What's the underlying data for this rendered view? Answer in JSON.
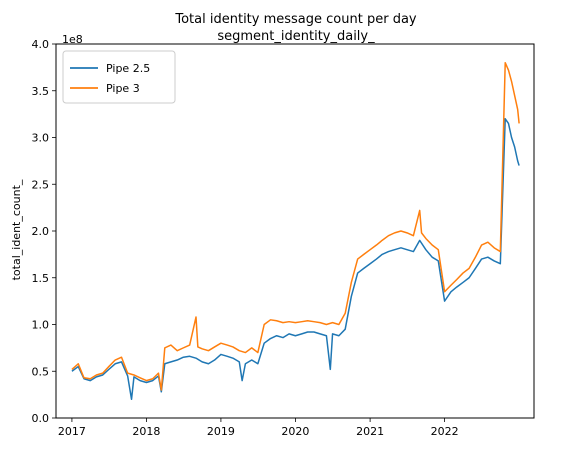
{
  "chart_data": {
    "type": "line",
    "title": "Total identity message count per day",
    "subtitle": "segment_identity_daily_",
    "xlabel": "",
    "ylabel": "total_ident_count_",
    "y_offset_label": "1e8",
    "y_scale_multiplier": 100000000,
    "xlim": [
      "2016-10-15",
      "2023-03-15"
    ],
    "ylim": [
      0,
      400000000
    ],
    "x_ticks": [
      {
        "date": "2017-01-01",
        "label": "2017"
      },
      {
        "date": "2018-01-01",
        "label": "2018"
      },
      {
        "date": "2019-01-01",
        "label": "2019"
      },
      {
        "date": "2020-01-01",
        "label": "2020"
      },
      {
        "date": "2021-01-01",
        "label": "2021"
      },
      {
        "date": "2022-01-01",
        "label": "2022"
      }
    ],
    "y_ticks": [
      {
        "value": 0,
        "label": "0.0"
      },
      {
        "value": 50000000,
        "label": "0.5"
      },
      {
        "value": 100000000,
        "label": "1.0"
      },
      {
        "value": 150000000,
        "label": "1.5"
      },
      {
        "value": 200000000,
        "label": "2.0"
      },
      {
        "value": 250000000,
        "label": "2.5"
      },
      {
        "value": 300000000,
        "label": "3.0"
      },
      {
        "value": 350000000,
        "label": "3.5"
      },
      {
        "value": 400000000,
        "label": "4.0"
      }
    ],
    "grid": false,
    "legend_position": "top-left",
    "series": [
      {
        "name": "Pipe 2.5",
        "color": "#1f77b4",
        "points": [
          [
            "2017-01-01",
            50000000
          ],
          [
            "2017-02-01",
            55000000
          ],
          [
            "2017-03-01",
            42000000
          ],
          [
            "2017-04-01",
            40000000
          ],
          [
            "2017-05-01",
            44000000
          ],
          [
            "2017-06-01",
            46000000
          ],
          [
            "2017-07-01",
            52000000
          ],
          [
            "2017-08-01",
            58000000
          ],
          [
            "2017-09-01",
            60000000
          ],
          [
            "2017-10-01",
            45000000
          ],
          [
            "2017-10-20",
            20000000
          ],
          [
            "2017-11-01",
            44000000
          ],
          [
            "2017-12-01",
            40000000
          ],
          [
            "2018-01-01",
            38000000
          ],
          [
            "2018-02-01",
            40000000
          ],
          [
            "2018-03-01",
            45000000
          ],
          [
            "2018-03-15",
            28000000
          ],
          [
            "2018-04-01",
            58000000
          ],
          [
            "2018-05-01",
            60000000
          ],
          [
            "2018-06-01",
            62000000
          ],
          [
            "2018-07-01",
            65000000
          ],
          [
            "2018-08-01",
            66000000
          ],
          [
            "2018-09-01",
            64000000
          ],
          [
            "2018-10-01",
            60000000
          ],
          [
            "2018-11-01",
            58000000
          ],
          [
            "2018-12-01",
            62000000
          ],
          [
            "2019-01-01",
            68000000
          ],
          [
            "2019-02-01",
            66000000
          ],
          [
            "2019-03-01",
            64000000
          ],
          [
            "2019-04-01",
            60000000
          ],
          [
            "2019-04-15",
            40000000
          ],
          [
            "2019-05-01",
            58000000
          ],
          [
            "2019-06-01",
            62000000
          ],
          [
            "2019-07-01",
            58000000
          ],
          [
            "2019-08-01",
            80000000
          ],
          [
            "2019-09-01",
            85000000
          ],
          [
            "2019-10-01",
            88000000
          ],
          [
            "2019-11-01",
            86000000
          ],
          [
            "2019-12-01",
            90000000
          ],
          [
            "2020-01-01",
            88000000
          ],
          [
            "2020-02-01",
            90000000
          ],
          [
            "2020-03-01",
            92000000
          ],
          [
            "2020-04-01",
            92000000
          ],
          [
            "2020-05-01",
            90000000
          ],
          [
            "2020-06-01",
            88000000
          ],
          [
            "2020-06-20",
            52000000
          ],
          [
            "2020-07-01",
            90000000
          ],
          [
            "2020-08-01",
            88000000
          ],
          [
            "2020-09-01",
            95000000
          ],
          [
            "2020-10-01",
            130000000
          ],
          [
            "2020-11-01",
            155000000
          ],
          [
            "2020-12-01",
            160000000
          ],
          [
            "2021-01-01",
            165000000
          ],
          [
            "2021-02-01",
            170000000
          ],
          [
            "2021-03-01",
            175000000
          ],
          [
            "2021-04-01",
            178000000
          ],
          [
            "2021-05-01",
            180000000
          ],
          [
            "2021-06-01",
            182000000
          ],
          [
            "2021-07-01",
            180000000
          ],
          [
            "2021-08-01",
            178000000
          ],
          [
            "2021-09-01",
            190000000
          ],
          [
            "2021-10-01",
            180000000
          ],
          [
            "2021-11-01",
            172000000
          ],
          [
            "2021-12-01",
            168000000
          ],
          [
            "2022-01-01",
            125000000
          ],
          [
            "2022-02-01",
            135000000
          ],
          [
            "2022-03-01",
            140000000
          ],
          [
            "2022-04-01",
            145000000
          ],
          [
            "2022-05-01",
            150000000
          ],
          [
            "2022-06-01",
            160000000
          ],
          [
            "2022-07-01",
            170000000
          ],
          [
            "2022-08-01",
            172000000
          ],
          [
            "2022-09-01",
            168000000
          ],
          [
            "2022-10-01",
            165000000
          ],
          [
            "2022-10-25",
            320000000
          ],
          [
            "2022-11-10",
            315000000
          ],
          [
            "2022-11-25",
            300000000
          ],
          [
            "2022-12-10",
            290000000
          ],
          [
            "2022-12-25",
            275000000
          ],
          [
            "2023-01-01",
            270000000
          ]
        ]
      },
      {
        "name": "Pipe 3",
        "color": "#ff7f0e",
        "points": [
          [
            "2017-01-01",
            52000000
          ],
          [
            "2017-02-01",
            58000000
          ],
          [
            "2017-03-01",
            43000000
          ],
          [
            "2017-04-01",
            42000000
          ],
          [
            "2017-05-01",
            46000000
          ],
          [
            "2017-06-01",
            48000000
          ],
          [
            "2017-07-01",
            55000000
          ],
          [
            "2017-08-01",
            62000000
          ],
          [
            "2017-09-01",
            65000000
          ],
          [
            "2017-10-01",
            48000000
          ],
          [
            "2017-11-01",
            46000000
          ],
          [
            "2017-12-01",
            43000000
          ],
          [
            "2018-01-01",
            40000000
          ],
          [
            "2018-02-01",
            42000000
          ],
          [
            "2018-03-01",
            48000000
          ],
          [
            "2018-03-15",
            30000000
          ],
          [
            "2018-04-01",
            75000000
          ],
          [
            "2018-05-01",
            78000000
          ],
          [
            "2018-06-01",
            72000000
          ],
          [
            "2018-07-01",
            75000000
          ],
          [
            "2018-08-01",
            78000000
          ],
          [
            "2018-09-01",
            108000000
          ],
          [
            "2018-09-10",
            76000000
          ],
          [
            "2018-10-01",
            74000000
          ],
          [
            "2018-11-01",
            72000000
          ],
          [
            "2018-12-01",
            76000000
          ],
          [
            "2019-01-01",
            80000000
          ],
          [
            "2019-02-01",
            78000000
          ],
          [
            "2019-03-01",
            76000000
          ],
          [
            "2019-04-01",
            72000000
          ],
          [
            "2019-05-01",
            70000000
          ],
          [
            "2019-06-01",
            75000000
          ],
          [
            "2019-07-01",
            70000000
          ],
          [
            "2019-08-01",
            100000000
          ],
          [
            "2019-09-01",
            105000000
          ],
          [
            "2019-10-01",
            104000000
          ],
          [
            "2019-11-01",
            102000000
          ],
          [
            "2019-12-01",
            103000000
          ],
          [
            "2020-01-01",
            102000000
          ],
          [
            "2020-02-01",
            103000000
          ],
          [
            "2020-03-01",
            104000000
          ],
          [
            "2020-04-01",
            103000000
          ],
          [
            "2020-05-01",
            102000000
          ],
          [
            "2020-06-01",
            100000000
          ],
          [
            "2020-07-01",
            102000000
          ],
          [
            "2020-08-01",
            100000000
          ],
          [
            "2020-09-01",
            112000000
          ],
          [
            "2020-10-01",
            145000000
          ],
          [
            "2020-11-01",
            170000000
          ],
          [
            "2020-12-01",
            175000000
          ],
          [
            "2021-01-01",
            180000000
          ],
          [
            "2021-02-01",
            185000000
          ],
          [
            "2021-03-01",
            190000000
          ],
          [
            "2021-04-01",
            195000000
          ],
          [
            "2021-05-01",
            198000000
          ],
          [
            "2021-06-01",
            200000000
          ],
          [
            "2021-07-01",
            198000000
          ],
          [
            "2021-08-01",
            195000000
          ],
          [
            "2021-09-01",
            222000000
          ],
          [
            "2021-09-10",
            198000000
          ],
          [
            "2021-10-01",
            192000000
          ],
          [
            "2021-11-01",
            185000000
          ],
          [
            "2021-12-01",
            180000000
          ],
          [
            "2022-01-01",
            135000000
          ],
          [
            "2022-02-01",
            142000000
          ],
          [
            "2022-03-01",
            148000000
          ],
          [
            "2022-04-01",
            155000000
          ],
          [
            "2022-05-01",
            160000000
          ],
          [
            "2022-06-01",
            172000000
          ],
          [
            "2022-07-01",
            185000000
          ],
          [
            "2022-08-01",
            188000000
          ],
          [
            "2022-09-01",
            182000000
          ],
          [
            "2022-10-01",
            178000000
          ],
          [
            "2022-10-25",
            380000000
          ],
          [
            "2022-11-10",
            372000000
          ],
          [
            "2022-11-25",
            360000000
          ],
          [
            "2022-12-10",
            345000000
          ],
          [
            "2022-12-25",
            330000000
          ],
          [
            "2023-01-01",
            315000000
          ]
        ]
      }
    ]
  }
}
